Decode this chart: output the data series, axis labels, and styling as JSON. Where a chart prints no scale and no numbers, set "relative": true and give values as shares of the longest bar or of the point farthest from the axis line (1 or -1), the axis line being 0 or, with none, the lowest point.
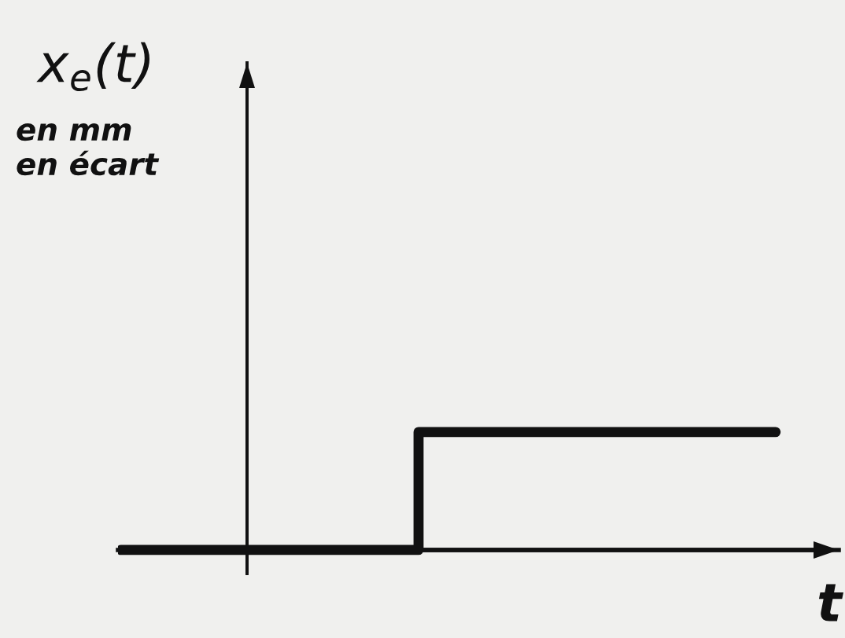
{
  "chart_data": {
    "type": "step",
    "ylabel": "x$_{e}$(t)\nen mm\nen écart",
    "xlabel": "t",
    "categories": [
      null,
      null,
      null,
      null,
      null,
      null,
      null,
      null,
      null,
      null,
      null,
      null
    ],
    "values": [
      0,
      0,
      0,
      0,
      0,
      1,
      1,
      1,
      1,
      1,
      1,
      1
    ],
    "color": "#111111",
    "relative": true
  }
}
